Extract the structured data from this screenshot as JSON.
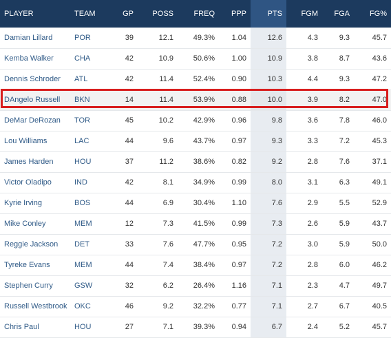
{
  "table": {
    "columns": [
      {
        "key": "player",
        "label": "PLAYER",
        "align": "left"
      },
      {
        "key": "team",
        "label": "TEAM",
        "align": "left"
      },
      {
        "key": "gp",
        "label": "GP"
      },
      {
        "key": "poss",
        "label": "POSS"
      },
      {
        "key": "freq",
        "label": "FREQ"
      },
      {
        "key": "ppp",
        "label": "PPP"
      },
      {
        "key": "pts",
        "label": "PTS",
        "sorted": true
      },
      {
        "key": "fgm",
        "label": "FGM"
      },
      {
        "key": "fga",
        "label": "FGA"
      },
      {
        "key": "fgp",
        "label": "FG%"
      }
    ],
    "highlighted_row": 3,
    "rows": [
      {
        "player": "Damian Lillard",
        "team": "POR",
        "gp": "39",
        "poss": "12.1",
        "freq": "49.3%",
        "ppp": "1.04",
        "pts": "12.6",
        "fgm": "4.3",
        "fga": "9.3",
        "fgp": "45.7"
      },
      {
        "player": "Kemba Walker",
        "team": "CHA",
        "gp": "42",
        "poss": "10.9",
        "freq": "50.6%",
        "ppp": "1.00",
        "pts": "10.9",
        "fgm": "3.8",
        "fga": "8.7",
        "fgp": "43.6"
      },
      {
        "player": "Dennis Schroder",
        "team": "ATL",
        "gp": "42",
        "poss": "11.4",
        "freq": "52.4%",
        "ppp": "0.90",
        "pts": "10.3",
        "fgm": "4.4",
        "fga": "9.3",
        "fgp": "47.2"
      },
      {
        "player": "DAngelo Russell",
        "team": "BKN",
        "gp": "14",
        "poss": "11.4",
        "freq": "53.9%",
        "ppp": "0.88",
        "pts": "10.0",
        "fgm": "3.9",
        "fga": "8.2",
        "fgp": "47.0"
      },
      {
        "player": "DeMar DeRozan",
        "team": "TOR",
        "gp": "45",
        "poss": "10.2",
        "freq": "42.9%",
        "ppp": "0.96",
        "pts": "9.8",
        "fgm": "3.6",
        "fga": "7.8",
        "fgp": "46.0"
      },
      {
        "player": "Lou Williams",
        "team": "LAC",
        "gp": "44",
        "poss": "9.6",
        "freq": "43.7%",
        "ppp": "0.97",
        "pts": "9.3",
        "fgm": "3.3",
        "fga": "7.2",
        "fgp": "45.3"
      },
      {
        "player": "James Harden",
        "team": "HOU",
        "gp": "37",
        "poss": "11.2",
        "freq": "38.6%",
        "ppp": "0.82",
        "pts": "9.2",
        "fgm": "2.8",
        "fga": "7.6",
        "fgp": "37.1"
      },
      {
        "player": "Victor Oladipo",
        "team": "IND",
        "gp": "42",
        "poss": "8.1",
        "freq": "34.9%",
        "ppp": "0.99",
        "pts": "8.0",
        "fgm": "3.1",
        "fga": "6.3",
        "fgp": "49.1"
      },
      {
        "player": "Kyrie Irving",
        "team": "BOS",
        "gp": "44",
        "poss": "6.9",
        "freq": "30.4%",
        "ppp": "1.10",
        "pts": "7.6",
        "fgm": "2.9",
        "fga": "5.5",
        "fgp": "52.9"
      },
      {
        "player": "Mike Conley",
        "team": "MEM",
        "gp": "12",
        "poss": "7.3",
        "freq": "41.5%",
        "ppp": "0.99",
        "pts": "7.3",
        "fgm": "2.6",
        "fga": "5.9",
        "fgp": "43.7"
      },
      {
        "player": "Reggie Jackson",
        "team": "DET",
        "gp": "33",
        "poss": "7.6",
        "freq": "47.7%",
        "ppp": "0.95",
        "pts": "7.2",
        "fgm": "3.0",
        "fga": "5.9",
        "fgp": "50.0"
      },
      {
        "player": "Tyreke Evans",
        "team": "MEM",
        "gp": "44",
        "poss": "7.4",
        "freq": "38.4%",
        "ppp": "0.97",
        "pts": "7.2",
        "fgm": "2.8",
        "fga": "6.0",
        "fgp": "46.2"
      },
      {
        "player": "Stephen Curry",
        "team": "GSW",
        "gp": "32",
        "poss": "6.2",
        "freq": "26.4%",
        "ppp": "1.16",
        "pts": "7.1",
        "fgm": "2.3",
        "fga": "4.7",
        "fgp": "49.7"
      },
      {
        "player": "Russell Westbrook",
        "team": "OKC",
        "gp": "46",
        "poss": "9.2",
        "freq": "32.2%",
        "ppp": "0.77",
        "pts": "7.1",
        "fgm": "2.7",
        "fga": "6.7",
        "fgp": "40.5"
      },
      {
        "player": "Chris Paul",
        "team": "HOU",
        "gp": "27",
        "poss": "7.1",
        "freq": "39.3%",
        "ppp": "0.94",
        "pts": "6.7",
        "fgm": "2.4",
        "fga": "5.2",
        "fgp": "45.7"
      }
    ]
  },
  "colors": {
    "header_bg": "#1c3a5e",
    "sorted_header_bg": "#2f5583",
    "sorted_column_bg": "#e8ecf1",
    "link_text": "#2f5a87",
    "highlight_border": "#d81e1e"
  }
}
